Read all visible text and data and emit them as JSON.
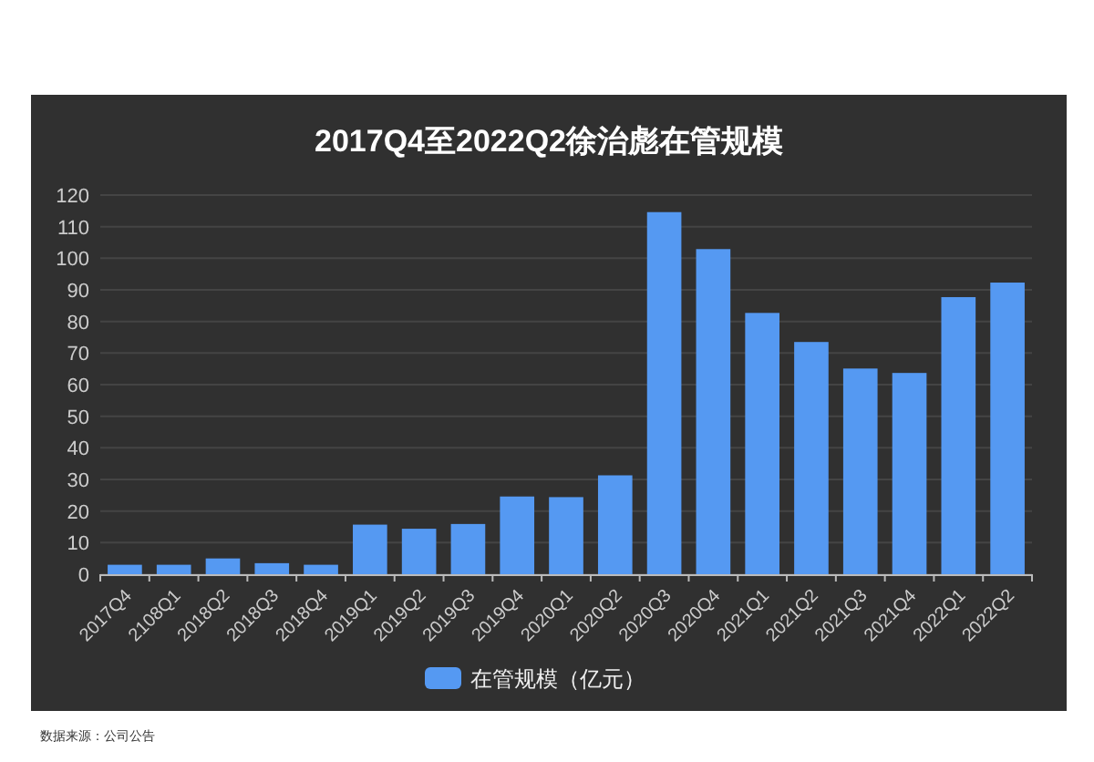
{
  "chart_data": {
    "type": "bar",
    "title": "2017Q4至2022Q2徐治彪在管规模",
    "categories": [
      "2017Q4",
      "2108Q1",
      "2018Q2",
      "2018Q3",
      "2018Q4",
      "2019Q1",
      "2019Q2",
      "2019Q3",
      "2019Q4",
      "2020Q1",
      "2020Q2",
      "2020Q3",
      "2020Q4",
      "2021Q1",
      "2021Q2",
      "2021Q3",
      "2021Q4",
      "2022Q1",
      "2022Q2"
    ],
    "series": [
      {
        "name": "在管规模（亿元）",
        "color": "#5599f2",
        "values": [
          3,
          3,
          5,
          3.5,
          3,
          15.7,
          14.4,
          15.9,
          24.6,
          24.4,
          31.3,
          114.6,
          102.9,
          82.7,
          73.5,
          65.1,
          63.7,
          87.7,
          92.3
        ]
      }
    ],
    "ylim": [
      0,
      120
    ],
    "yticks": [
      0,
      10,
      20,
      30,
      40,
      50,
      60,
      70,
      80,
      90,
      100,
      110,
      120
    ],
    "grid": "y",
    "legend": "bottom",
    "annotations": [
      "数据来源：公司公告"
    ]
  }
}
